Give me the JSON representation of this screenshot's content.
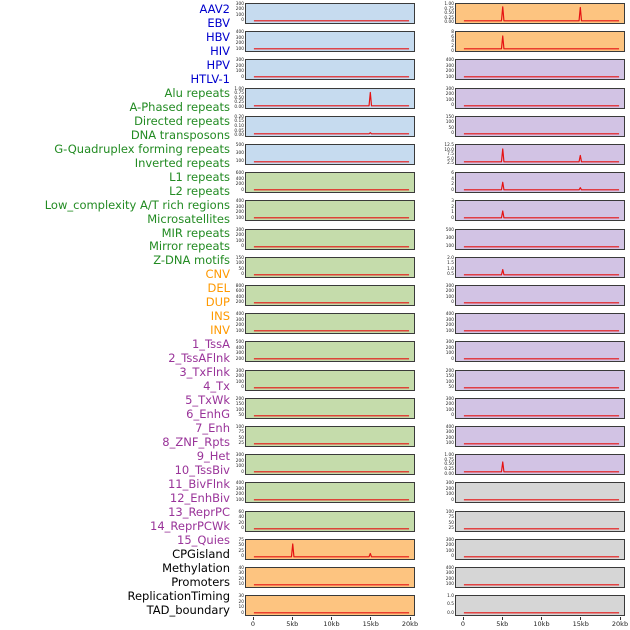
{
  "figure": {
    "background": "#ffffff"
  },
  "chart_data": {
    "type": "line",
    "layout": "small-multiples, 2 plot columns x 22 rows, row labels at left, shared x-axis at bottom",
    "x_axis": {
      "tick_labels": [
        "0",
        "5kb",
        "10kb",
        "15kb",
        "20kb"
      ],
      "range_kb": [
        0,
        20
      ]
    },
    "trace_color": "#e51212",
    "group_colors": {
      "virus": "#0000cd",
      "repeat": "#228b22",
      "sv": "#ff9900",
      "chromhmm": "#993399",
      "other": "#000000"
    },
    "bg_colors": {
      "virus": "#c6dbef",
      "repeat": "#c5dcab",
      "sv": "#fdc480",
      "chromhmm": "#d2c3e4",
      "other": "#d6d6d6"
    },
    "panels": [
      {
        "label": "AAV2",
        "group": "virus",
        "column": 0,
        "row": 0,
        "yticks": [
          "300",
          "200",
          "100",
          "0"
        ],
        "spikes": []
      },
      {
        "label": "EBV",
        "group": "virus",
        "column": 0,
        "row": 1,
        "yticks": [
          "400",
          "300",
          "200",
          "100"
        ],
        "spikes": []
      },
      {
        "label": "HBV",
        "group": "virus",
        "column": 0,
        "row": 2,
        "yticks": [
          "300",
          "200",
          "100",
          "0"
        ],
        "spikes": []
      },
      {
        "label": "HIV",
        "group": "virus",
        "column": 0,
        "row": 3,
        "yticks": [
          "1.00",
          "0.75",
          "0.50",
          "0.25",
          "0.00"
        ],
        "spikes": [
          [
            15,
            0.88
          ]
        ]
      },
      {
        "label": "HPV",
        "group": "virus",
        "column": 0,
        "row": 4,
        "yticks": [
          "0.20",
          "0.15",
          "0.10",
          "0.05",
          "0.00"
        ],
        "spikes": [
          [
            15,
            0.08
          ]
        ]
      },
      {
        "label": "HTLV-1",
        "group": "virus",
        "column": 0,
        "row": 5,
        "yticks": [
          "500",
          "300",
          "100"
        ],
        "spikes": []
      },
      {
        "label": "Alu repeats",
        "group": "repeat",
        "column": 0,
        "row": 6,
        "yticks": [
          "600",
          "400",
          "200",
          "0"
        ],
        "spikes": []
      },
      {
        "label": "A-Phased repeats",
        "group": "repeat",
        "column": 0,
        "row": 7,
        "yticks": [
          "400",
          "300",
          "200",
          "100"
        ],
        "spikes": []
      },
      {
        "label": "Directed repeats",
        "group": "repeat",
        "column": 0,
        "row": 8,
        "yticks": [
          "300",
          "200",
          "100",
          "0"
        ],
        "spikes": []
      },
      {
        "label": "DNA transposons",
        "group": "repeat",
        "column": 0,
        "row": 9,
        "yticks": [
          "150",
          "100",
          "50",
          "0"
        ],
        "spikes": []
      },
      {
        "label": "G-Quadruplex forming repeats",
        "group": "repeat",
        "column": 0,
        "row": 10,
        "yticks": [
          "800",
          "600",
          "400",
          "200"
        ],
        "spikes": []
      },
      {
        "label": "Inverted repeats",
        "group": "repeat",
        "column": 0,
        "row": 11,
        "yticks": [
          "400",
          "300",
          "200",
          "100"
        ],
        "spikes": []
      },
      {
        "label": "L1 repeats",
        "group": "repeat",
        "column": 0,
        "row": 12,
        "yticks": [
          "500",
          "400",
          "300",
          "200"
        ],
        "spikes": []
      },
      {
        "label": "L2 repeats",
        "group": "repeat",
        "column": 0,
        "row": 13,
        "yticks": [
          "300",
          "200",
          "100",
          "0"
        ],
        "spikes": []
      },
      {
        "label": "Low_complexity A/T rich regions",
        "group": "repeat",
        "column": 0,
        "row": 14,
        "yticks": [
          "200",
          "150",
          "100",
          "50"
        ],
        "spikes": []
      },
      {
        "label": "Microsatellites",
        "group": "repeat",
        "column": 0,
        "row": 15,
        "yticks": [
          "100",
          "75",
          "50",
          "25"
        ],
        "spikes": []
      },
      {
        "label": "MIR repeats",
        "group": "repeat",
        "column": 0,
        "row": 16,
        "yticks": [
          "300",
          "200",
          "100",
          "0"
        ],
        "spikes": []
      },
      {
        "label": "Mirror repeats",
        "group": "repeat",
        "column": 0,
        "row": 17,
        "yticks": [
          "400",
          "300",
          "200",
          "100"
        ],
        "spikes": []
      },
      {
        "label": "Z-DNA motifs",
        "group": "repeat",
        "column": 0,
        "row": 18,
        "yticks": [
          "60",
          "40",
          "20",
          "0"
        ],
        "spikes": []
      },
      {
        "label": "CNV",
        "group": "sv",
        "column": 0,
        "row": 19,
        "yticks": [
          "75",
          "50",
          "25",
          "0"
        ],
        "spikes": [
          [
            5,
            0.85
          ],
          [
            15,
            0.22
          ]
        ]
      },
      {
        "label": "DEL",
        "group": "sv",
        "column": 0,
        "row": 20,
        "yticks": [
          "40",
          "30",
          "20",
          "10"
        ],
        "spikes": []
      },
      {
        "label": "DUP",
        "group": "sv",
        "column": 0,
        "row": 21,
        "yticks": [
          "30",
          "20",
          "10",
          "0"
        ],
        "spikes": []
      },
      {
        "label": "INS",
        "group": "sv",
        "column": 1,
        "row": 0,
        "yticks": [
          "1.00",
          "0.75",
          "0.50",
          "0.25",
          "0.00"
        ],
        "spikes": [
          [
            5,
            0.92
          ],
          [
            15,
            0.88
          ]
        ]
      },
      {
        "label": "INV",
        "group": "sv",
        "column": 1,
        "row": 1,
        "yticks": [
          "8",
          "6",
          "4",
          "2",
          "0"
        ],
        "spikes": [
          [
            5,
            0.85
          ]
        ]
      },
      {
        "label": "1_TssA",
        "group": "chromhmm",
        "column": 1,
        "row": 2,
        "yticks": [
          "400",
          "300",
          "200",
          "100"
        ],
        "spikes": []
      },
      {
        "label": "2_TssAFlnk",
        "group": "chromhmm",
        "column": 1,
        "row": 3,
        "yticks": [
          "300",
          "200",
          "100",
          "0"
        ],
        "spikes": []
      },
      {
        "label": "3_TxFlnk",
        "group": "chromhmm",
        "column": 1,
        "row": 4,
        "yticks": [
          "150",
          "100",
          "50",
          "0"
        ],
        "spikes": []
      },
      {
        "label": "4_Tx",
        "group": "chromhmm",
        "column": 1,
        "row": 5,
        "yticks": [
          "12.5",
          "10.0",
          "7.5",
          "5.0",
          "2.5"
        ],
        "spikes": [
          [
            5,
            0.85
          ],
          [
            15,
            0.42
          ]
        ]
      },
      {
        "label": "5_TxWk",
        "group": "chromhmm",
        "column": 1,
        "row": 6,
        "yticks": [
          "6",
          "4",
          "2",
          "0"
        ],
        "spikes": [
          [
            5,
            0.5
          ],
          [
            15,
            0.14
          ]
        ]
      },
      {
        "label": "6_EnhG",
        "group": "chromhmm",
        "column": 1,
        "row": 7,
        "yticks": [
          "3",
          "2",
          "1",
          "0"
        ],
        "spikes": [
          [
            5,
            0.45
          ]
        ]
      },
      {
        "label": "7_Enh",
        "group": "chromhmm",
        "column": 1,
        "row": 8,
        "yticks": [
          "500",
          "300",
          "100"
        ],
        "spikes": []
      },
      {
        "label": "8_ZNF_Rpts",
        "group": "chromhmm",
        "column": 1,
        "row": 9,
        "yticks": [
          "2.0",
          "1.5",
          "1.0",
          "0.5"
        ],
        "spikes": [
          [
            5,
            0.35
          ]
        ]
      },
      {
        "label": "9_Het",
        "group": "chromhmm",
        "column": 1,
        "row": 10,
        "yticks": [
          "300",
          "200",
          "100",
          "0"
        ],
        "spikes": []
      },
      {
        "label": "10_TssBiv",
        "group": "chromhmm",
        "column": 1,
        "row": 11,
        "yticks": [
          "400",
          "300",
          "200",
          "100"
        ],
        "spikes": []
      },
      {
        "label": "11_BivFlnk",
        "group": "chromhmm",
        "column": 1,
        "row": 12,
        "yticks": [
          "300",
          "200",
          "100",
          "0"
        ],
        "spikes": []
      },
      {
        "label": "12_EnhBiv",
        "group": "chromhmm",
        "column": 1,
        "row": 13,
        "yticks": [
          "200",
          "150",
          "100",
          "50"
        ],
        "spikes": []
      },
      {
        "label": "13_ReprPC",
        "group": "chromhmm",
        "column": 1,
        "row": 14,
        "yticks": [
          "300",
          "200",
          "100",
          "0"
        ],
        "spikes": []
      },
      {
        "label": "14_ReprPCWk",
        "group": "chromhmm",
        "column": 1,
        "row": 15,
        "yticks": [
          "400",
          "300",
          "200",
          "100"
        ],
        "spikes": []
      },
      {
        "label": "15_Quies",
        "group": "chromhmm",
        "column": 1,
        "row": 16,
        "yticks": [
          "1.00",
          "0.75",
          "0.50",
          "0.25",
          "0.00"
        ],
        "spikes": [
          [
            5,
            0.65
          ]
        ]
      },
      {
        "label": "CPGisland",
        "group": "other",
        "column": 1,
        "row": 17,
        "yticks": [
          "300",
          "200",
          "100",
          "0"
        ],
        "spikes": []
      },
      {
        "label": "Methylation",
        "group": "other",
        "column": 1,
        "row": 18,
        "yticks": [
          "100",
          "75",
          "50",
          "25"
        ],
        "spikes": []
      },
      {
        "label": "Promoters",
        "group": "other",
        "column": 1,
        "row": 19,
        "yticks": [
          "300",
          "200",
          "100",
          "0"
        ],
        "spikes": []
      },
      {
        "label": "ReplicationTiming",
        "group": "other",
        "column": 1,
        "row": 20,
        "yticks": [
          "400",
          "300",
          "200",
          "100"
        ],
        "spikes": []
      },
      {
        "label": "TAD_boundary",
        "group": "other",
        "column": 1,
        "row": 21,
        "yticks": [
          "1.0",
          "0.5",
          "0.0"
        ],
        "spikes": []
      }
    ]
  }
}
